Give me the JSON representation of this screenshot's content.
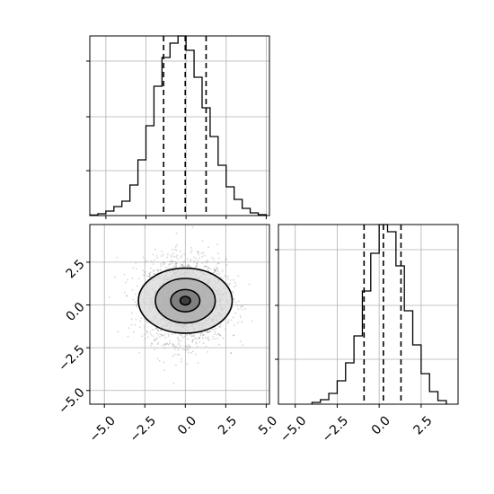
{
  "chart_data": [
    {
      "panel": "marginal-x",
      "type": "histogram",
      "xlim": [
        -6.0,
        5.2
      ],
      "ylim": [
        0,
        1.0
      ],
      "grid": true,
      "show_x_tick_labels": false,
      "show_y_tick_labels": false,
      "bin_edges": [
        -6.0,
        -5.5,
        -5.0,
        -4.5,
        -4.0,
        -3.5,
        -3.0,
        -2.5,
        -2.0,
        -1.5,
        -1.0,
        -0.5,
        0.0,
        0.5,
        1.0,
        1.5,
        2.0,
        2.5,
        3.0,
        3.5,
        4.0,
        4.5,
        5.0
      ],
      "counts": [
        0.003,
        0.01,
        0.025,
        0.05,
        0.08,
        0.17,
        0.31,
        0.5,
        0.72,
        0.88,
        0.96,
        1.0,
        0.92,
        0.77,
        0.6,
        0.44,
        0.28,
        0.16,
        0.09,
        0.04,
        0.015,
        0.005
      ],
      "quantiles": [
        -1.4,
        -0.05,
        1.25
      ],
      "x_ticks": [
        -5,
        -2.5,
        0,
        2.5,
        5
      ],
      "y_ticks": [
        0.25,
        0.55,
        0.86
      ]
    },
    {
      "panel": "joint",
      "type": "scatter-contour",
      "xlim": [
        -5.9,
        5.2
      ],
      "ylim": [
        -5.8,
        4.7
      ],
      "grid": true,
      "x_ticks": [
        -5,
        -2.5,
        0,
        2.5,
        5
      ],
      "x_tick_labels": [
        "−5.0",
        "−2.5",
        "0.0",
        "2.5",
        "5.0"
      ],
      "y_ticks": [
        2.5,
        0,
        -2.5,
        -5
      ],
      "y_tick_labels": [
        "2.5",
        "0.0",
        "−2.5",
        "−5.0"
      ],
      "center": [
        0.0,
        0.25
      ],
      "spread": [
        1.25,
        1.2
      ],
      "contours": [
        {
          "level": "outer",
          "rx": 2.9,
          "ry": 1.9
        },
        {
          "level": "mid",
          "rx": 1.85,
          "ry": 1.3
        },
        {
          "level": "inner",
          "rx": 0.9,
          "ry": 0.65
        },
        {
          "level": "core",
          "rx": 0.32,
          "ry": 0.25
        }
      ]
    },
    {
      "panel": "marginal-y",
      "type": "histogram",
      "xlim": [
        -6.0,
        4.7
      ],
      "ylim": [
        0,
        1.0
      ],
      "grid": true,
      "show_y_tick_labels": false,
      "x_ticks": [
        -5,
        -2.5,
        0,
        2.5
      ],
      "x_tick_labels": [
        "−5.0",
        "−2.5",
        "0.0",
        "2.5"
      ],
      "y_ticks": [
        0.25,
        0.55,
        0.86
      ],
      "bin_edges": [
        -4.0,
        -3.5,
        -3.0,
        -2.5,
        -2.0,
        -1.5,
        -1.0,
        -0.5,
        0.0,
        0.5,
        1.0,
        1.5,
        2.0,
        2.5,
        3.0,
        3.5,
        4.0
      ],
      "counts": [
        0.01,
        0.025,
        0.06,
        0.13,
        0.23,
        0.38,
        0.63,
        0.84,
        1.0,
        0.96,
        0.77,
        0.52,
        0.33,
        0.17,
        0.07,
        0.02
      ],
      "quantiles": [
        -0.9,
        0.25,
        1.3
      ]
    }
  ]
}
